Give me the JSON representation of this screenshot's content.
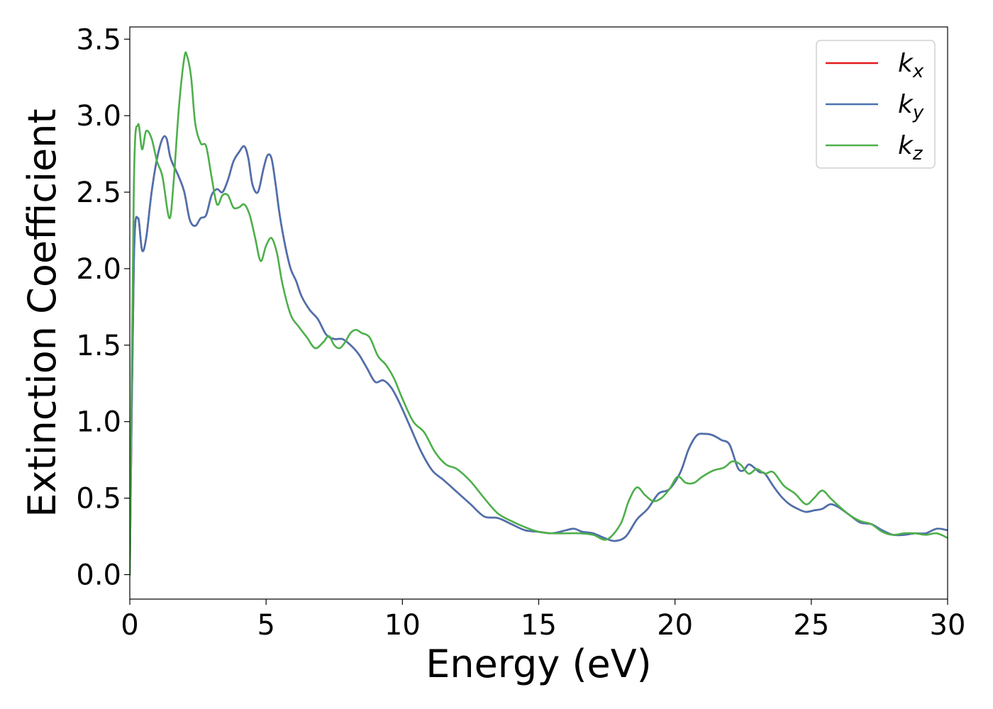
{
  "chart_data": {
    "type": "line",
    "xlabel": "Energy (eV)",
    "ylabel": "Extinction Coefficient",
    "xlim": [
      0,
      30
    ],
    "ylim": [
      -0.16,
      3.58
    ],
    "xticks": [
      0,
      5,
      10,
      15,
      20,
      25,
      30
    ],
    "xtick_labels": [
      "0",
      "5",
      "10",
      "15",
      "20",
      "25",
      "30"
    ],
    "yticks": [
      0.0,
      0.5,
      1.0,
      1.5,
      2.0,
      2.5,
      3.0,
      3.5
    ],
    "ytick_labels": [
      "0.0",
      "0.5",
      "1.0",
      "1.5",
      "2.0",
      "2.5",
      "3.0",
      "3.5"
    ],
    "grid": false,
    "legend_position": "top-right",
    "series": [
      {
        "name": "k_x",
        "legend_base": "k",
        "legend_sub": "x",
        "color": "#e41a1c",
        "x": [
          0,
          0.15,
          0.3,
          0.45,
          0.6,
          0.8,
          1.0,
          1.2,
          1.35,
          1.5,
          1.8,
          2.0,
          2.2,
          2.4,
          2.6,
          2.8,
          3.0,
          3.2,
          3.4,
          3.6,
          3.8,
          4.0,
          4.2,
          4.35,
          4.5,
          4.7,
          4.9,
          5.05,
          5.2,
          5.35,
          5.5,
          5.7,
          5.9,
          6.1,
          6.3,
          6.6,
          6.9,
          7.2,
          7.5,
          7.8,
          8.1,
          8.4,
          8.7,
          9.0,
          9.3,
          9.6,
          9.9,
          10.3,
          10.7,
          11.1,
          11.5,
          12.0,
          12.5,
          13.0,
          13.5,
          14.0,
          14.5,
          15.0,
          15.5,
          16.0,
          16.3,
          16.6,
          17.0,
          17.4,
          17.8,
          18.2,
          18.6,
          19.0,
          19.4,
          19.8,
          20.2,
          20.5,
          20.8,
          21.1,
          21.4,
          21.7,
          22.0,
          22.3,
          22.5,
          22.7,
          22.9,
          23.1,
          23.3,
          23.6,
          23.9,
          24.2,
          24.5,
          24.8,
          25.1,
          25.4,
          25.7,
          26.0,
          26.4,
          26.8,
          27.2,
          27.6,
          28.0,
          28.4,
          28.8,
          29.2,
          29.6,
          30.0
        ],
        "y": [
          0.0,
          2.05,
          2.33,
          2.12,
          2.2,
          2.5,
          2.72,
          2.85,
          2.85,
          2.72,
          2.6,
          2.5,
          2.32,
          2.28,
          2.33,
          2.35,
          2.48,
          2.52,
          2.5,
          2.58,
          2.7,
          2.76,
          2.8,
          2.72,
          2.55,
          2.5,
          2.65,
          2.74,
          2.72,
          2.55,
          2.35,
          2.15,
          2.0,
          1.92,
          1.82,
          1.73,
          1.67,
          1.57,
          1.54,
          1.54,
          1.5,
          1.44,
          1.35,
          1.26,
          1.27,
          1.22,
          1.12,
          0.96,
          0.8,
          0.68,
          0.62,
          0.54,
          0.46,
          0.38,
          0.37,
          0.33,
          0.29,
          0.28,
          0.27,
          0.29,
          0.3,
          0.28,
          0.27,
          0.24,
          0.22,
          0.25,
          0.36,
          0.43,
          0.53,
          0.56,
          0.67,
          0.82,
          0.91,
          0.92,
          0.91,
          0.88,
          0.85,
          0.7,
          0.68,
          0.72,
          0.7,
          0.67,
          0.66,
          0.58,
          0.51,
          0.46,
          0.43,
          0.41,
          0.42,
          0.43,
          0.46,
          0.44,
          0.39,
          0.34,
          0.33,
          0.29,
          0.26,
          0.26,
          0.27,
          0.27,
          0.3,
          0.29
        ]
      },
      {
        "name": "k_y",
        "legend_base": "k",
        "legend_sub": "y",
        "color": "#4a72b0",
        "x": [
          0,
          0.15,
          0.3,
          0.45,
          0.6,
          0.8,
          1.0,
          1.2,
          1.35,
          1.5,
          1.8,
          2.0,
          2.2,
          2.4,
          2.6,
          2.8,
          3.0,
          3.2,
          3.4,
          3.6,
          3.8,
          4.0,
          4.2,
          4.35,
          4.5,
          4.7,
          4.9,
          5.05,
          5.2,
          5.35,
          5.5,
          5.7,
          5.9,
          6.1,
          6.3,
          6.6,
          6.9,
          7.2,
          7.5,
          7.8,
          8.1,
          8.4,
          8.7,
          9.0,
          9.3,
          9.6,
          9.9,
          10.3,
          10.7,
          11.1,
          11.5,
          12.0,
          12.5,
          13.0,
          13.5,
          14.0,
          14.5,
          15.0,
          15.5,
          16.0,
          16.3,
          16.6,
          17.0,
          17.4,
          17.8,
          18.2,
          18.6,
          19.0,
          19.4,
          19.8,
          20.2,
          20.5,
          20.8,
          21.1,
          21.4,
          21.7,
          22.0,
          22.3,
          22.5,
          22.7,
          22.9,
          23.1,
          23.3,
          23.6,
          23.9,
          24.2,
          24.5,
          24.8,
          25.1,
          25.4,
          25.7,
          26.0,
          26.4,
          26.8,
          27.2,
          27.6,
          28.0,
          28.4,
          28.8,
          29.2,
          29.6,
          30.0
        ],
        "y": [
          0.0,
          2.05,
          2.33,
          2.12,
          2.2,
          2.5,
          2.72,
          2.85,
          2.85,
          2.72,
          2.6,
          2.5,
          2.32,
          2.28,
          2.33,
          2.35,
          2.48,
          2.52,
          2.5,
          2.58,
          2.7,
          2.76,
          2.8,
          2.72,
          2.55,
          2.5,
          2.65,
          2.74,
          2.72,
          2.55,
          2.35,
          2.15,
          2.0,
          1.92,
          1.82,
          1.73,
          1.67,
          1.57,
          1.54,
          1.54,
          1.5,
          1.44,
          1.35,
          1.26,
          1.27,
          1.22,
          1.12,
          0.96,
          0.8,
          0.68,
          0.62,
          0.54,
          0.46,
          0.38,
          0.37,
          0.33,
          0.29,
          0.28,
          0.27,
          0.29,
          0.3,
          0.28,
          0.27,
          0.24,
          0.22,
          0.25,
          0.36,
          0.43,
          0.53,
          0.56,
          0.67,
          0.82,
          0.91,
          0.92,
          0.91,
          0.88,
          0.85,
          0.7,
          0.68,
          0.72,
          0.7,
          0.67,
          0.66,
          0.58,
          0.51,
          0.46,
          0.43,
          0.41,
          0.42,
          0.43,
          0.46,
          0.44,
          0.39,
          0.34,
          0.33,
          0.29,
          0.26,
          0.26,
          0.27,
          0.27,
          0.3,
          0.29
        ]
      },
      {
        "name": "k_z",
        "legend_base": "k",
        "legend_sub": "z",
        "color": "#4daf4a",
        "x": [
          0,
          0.15,
          0.3,
          0.45,
          0.6,
          0.8,
          1.0,
          1.2,
          1.45,
          1.6,
          1.8,
          2.0,
          2.1,
          2.25,
          2.4,
          2.6,
          2.8,
          3.0,
          3.2,
          3.4,
          3.6,
          3.8,
          4.0,
          4.2,
          4.4,
          4.6,
          4.8,
          5.0,
          5.2,
          5.4,
          5.6,
          5.9,
          6.2,
          6.5,
          6.8,
          7.1,
          7.3,
          7.5,
          7.7,
          7.9,
          8.1,
          8.3,
          8.5,
          8.8,
          9.1,
          9.4,
          9.7,
          10.0,
          10.4,
          10.8,
          11.2,
          11.6,
          12.0,
          12.5,
          13.0,
          13.5,
          14.0,
          14.5,
          15.0,
          15.5,
          16.0,
          16.5,
          17.0,
          17.5,
          18.0,
          18.3,
          18.6,
          18.9,
          19.2,
          19.5,
          19.8,
          20.1,
          20.4,
          20.7,
          21.0,
          21.4,
          21.8,
          22.1,
          22.4,
          22.7,
          23.0,
          23.3,
          23.6,
          24.0,
          24.4,
          24.8,
          25.1,
          25.4,
          25.7,
          26.0,
          26.4,
          26.8,
          27.2,
          27.6,
          28.0,
          28.4,
          28.8,
          29.2,
          29.6,
          30.0
        ],
        "y": [
          0.0,
          2.55,
          2.94,
          2.78,
          2.9,
          2.85,
          2.7,
          2.6,
          2.33,
          2.55,
          3.05,
          3.38,
          3.39,
          3.25,
          2.95,
          2.82,
          2.8,
          2.6,
          2.42,
          2.48,
          2.48,
          2.4,
          2.4,
          2.42,
          2.35,
          2.2,
          2.05,
          2.15,
          2.2,
          2.1,
          1.9,
          1.7,
          1.62,
          1.55,
          1.48,
          1.52,
          1.56,
          1.5,
          1.48,
          1.52,
          1.58,
          1.6,
          1.58,
          1.55,
          1.43,
          1.37,
          1.28,
          1.15,
          1.0,
          0.93,
          0.8,
          0.72,
          0.69,
          0.61,
          0.5,
          0.4,
          0.35,
          0.31,
          0.28,
          0.27,
          0.27,
          0.27,
          0.26,
          0.23,
          0.33,
          0.48,
          0.57,
          0.52,
          0.48,
          0.5,
          0.56,
          0.64,
          0.6,
          0.6,
          0.64,
          0.68,
          0.7,
          0.74,
          0.72,
          0.66,
          0.69,
          0.66,
          0.67,
          0.58,
          0.53,
          0.46,
          0.5,
          0.55,
          0.5,
          0.45,
          0.39,
          0.35,
          0.33,
          0.28,
          0.26,
          0.27,
          0.27,
          0.26,
          0.27,
          0.24
        ]
      }
    ]
  }
}
